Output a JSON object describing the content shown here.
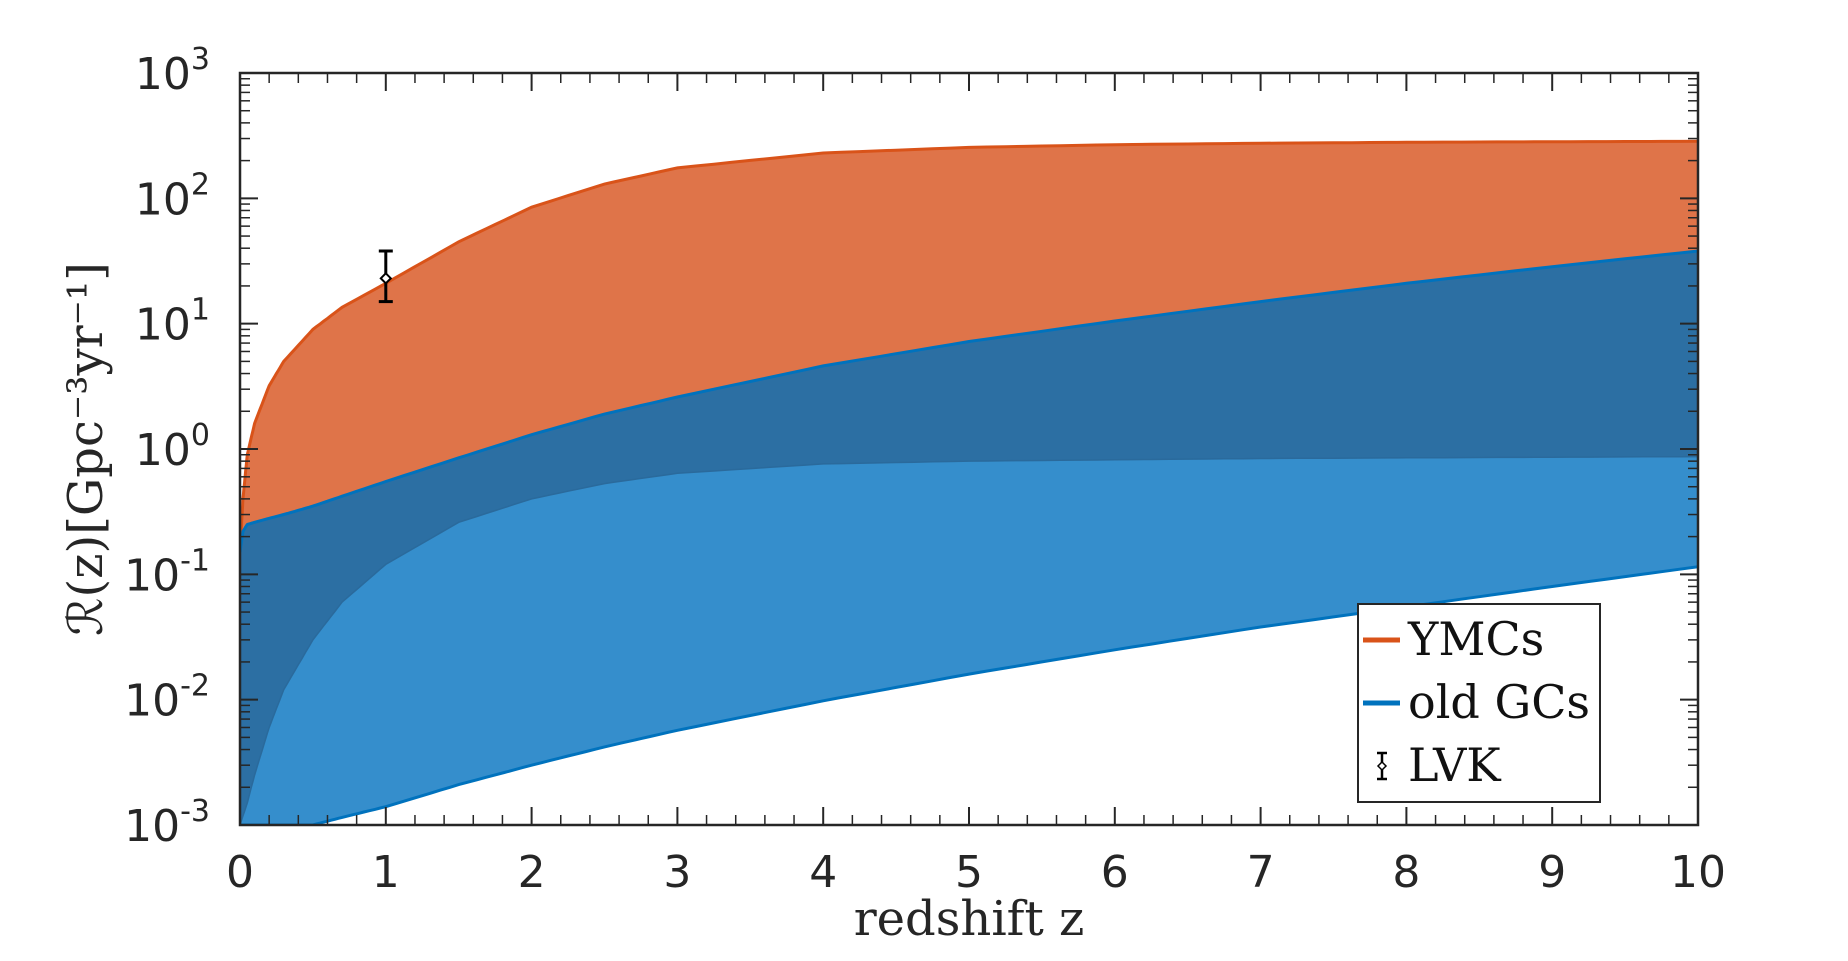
{
  "chart_data": {
    "type": "area",
    "xlabel": "redshift z",
    "ylabel": "ℛ(z)[Gpc⁻³yr⁻¹]",
    "xlim": [
      0,
      10
    ],
    "ylim": [
      0.001,
      1000
    ],
    "yscale": "log",
    "xticks": [
      "0",
      "1",
      "2",
      "3",
      "4",
      "5",
      "6",
      "7",
      "8",
      "9",
      "10"
    ],
    "yticks": [
      {
        "base": "10",
        "exp": "-3",
        "value": 0.001
      },
      {
        "base": "10",
        "exp": "-2",
        "value": 0.01
      },
      {
        "base": "10",
        "exp": "-1",
        "value": 0.1
      },
      {
        "base": "10",
        "exp": "0",
        "value": 1
      },
      {
        "base": "10",
        "exp": "1",
        "value": 10
      },
      {
        "base": "10",
        "exp": "2",
        "value": 100
      },
      {
        "base": "10",
        "exp": "3",
        "value": 1000
      }
    ],
    "grid": false,
    "legend_position": "bottom-right",
    "series": [
      {
        "name": "YMCs",
        "kind": "band",
        "color": "#D95319",
        "fill": "#DF7449",
        "x": [
          0,
          0.02,
          0.05,
          0.1,
          0.2,
          0.3,
          0.5,
          0.7,
          1,
          1.5,
          2,
          2.5,
          3,
          4,
          5,
          6,
          7,
          8,
          9,
          10
        ],
        "upper": [
          0.15,
          0.4,
          0.9,
          1.6,
          3.2,
          5,
          9,
          13.5,
          21,
          45,
          85,
          130,
          175,
          230,
          255,
          268,
          275,
          280,
          283,
          285
        ],
        "lower": [
          0.15,
          0.22,
          0.25,
          0.26,
          0.28,
          0.3,
          0.35,
          0.42,
          0.55,
          0.85,
          1.3,
          1.9,
          2.6,
          4.6,
          7.2,
          10.5,
          15,
          21,
          28.5,
          38
        ]
      },
      {
        "name": "old GCs",
        "kind": "band",
        "color": "#0072BD",
        "fill": "#358ECC",
        "x": [
          0,
          0.02,
          0.05,
          0.1,
          0.2,
          0.3,
          0.5,
          0.7,
          1,
          1.5,
          2,
          2.5,
          3,
          4,
          5,
          6,
          7,
          8,
          9,
          10
        ],
        "upper": [
          0.15,
          0.22,
          0.25,
          0.26,
          0.28,
          0.3,
          0.35,
          0.42,
          0.55,
          0.85,
          1.3,
          1.9,
          2.6,
          4.6,
          7.2,
          10.5,
          15,
          21,
          28.5,
          38
        ],
        "lower": [
          0.001,
          0.001,
          0.001,
          0.001,
          0.001,
          0.001,
          0.001,
          0.00115,
          0.0014,
          0.0021,
          0.003,
          0.0042,
          0.0057,
          0.0098,
          0.016,
          0.025,
          0.038,
          0.055,
          0.08,
          0.115
        ]
      },
      {
        "name": "old GCs (inner)",
        "kind": "inner-boundary",
        "x": [
          0,
          0.05,
          0.1,
          0.2,
          0.3,
          0.5,
          0.7,
          1,
          1.5,
          2,
          2.5,
          3,
          4,
          5,
          6,
          7,
          8,
          9,
          10
        ],
        "lower": [
          0.001,
          0.0015,
          0.0025,
          0.006,
          0.012,
          0.03,
          0.06,
          0.12,
          0.26,
          0.4,
          0.53,
          0.64,
          0.76,
          0.8,
          0.82,
          0.84,
          0.85,
          0.86,
          0.87
        ]
      },
      {
        "name": "LVK",
        "kind": "errorbar",
        "x": 1,
        "y": 23,
        "ylow": 15,
        "yhigh": 38
      }
    ]
  },
  "legend": [
    {
      "label": "YMCs",
      "color": "#D95319"
    },
    {
      "label": "old GCs",
      "color": "#0072BD"
    },
    {
      "label": "LVK",
      "color": "#000000"
    }
  ],
  "colors": {
    "ymc_fill": "#DF7449",
    "ymc_line": "#D95319",
    "gc_fill": "#358ECC",
    "gc_line": "#0072BD",
    "overlap_fill": "#2C6FA3",
    "axis": "#262626"
  }
}
